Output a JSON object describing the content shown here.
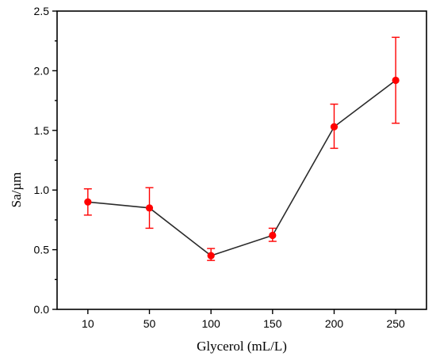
{
  "chart_data": {
    "type": "line",
    "categories": [
      "10",
      "50",
      "100",
      "150",
      "200",
      "250"
    ],
    "series": [
      {
        "values": [
          0.9,
          0.85,
          0.45,
          0.62,
          1.53,
          1.92
        ],
        "error_upper": [
          1.01,
          1.02,
          0.51,
          0.68,
          1.72,
          2.28
        ],
        "error_lower": [
          0.79,
          0.68,
          0.41,
          0.57,
          1.35,
          1.56
        ],
        "color": "#ff0000",
        "line_color": "#2b2b2b"
      }
    ],
    "xlabel": "Glycerol (mL/L)",
    "ylabel": "Sa/µm",
    "ylim": [
      0,
      2.5
    ],
    "yticks": [
      "0.0",
      "0.5",
      "1.0",
      "1.5",
      "2.0",
      "2.5"
    ],
    "grid": false
  }
}
